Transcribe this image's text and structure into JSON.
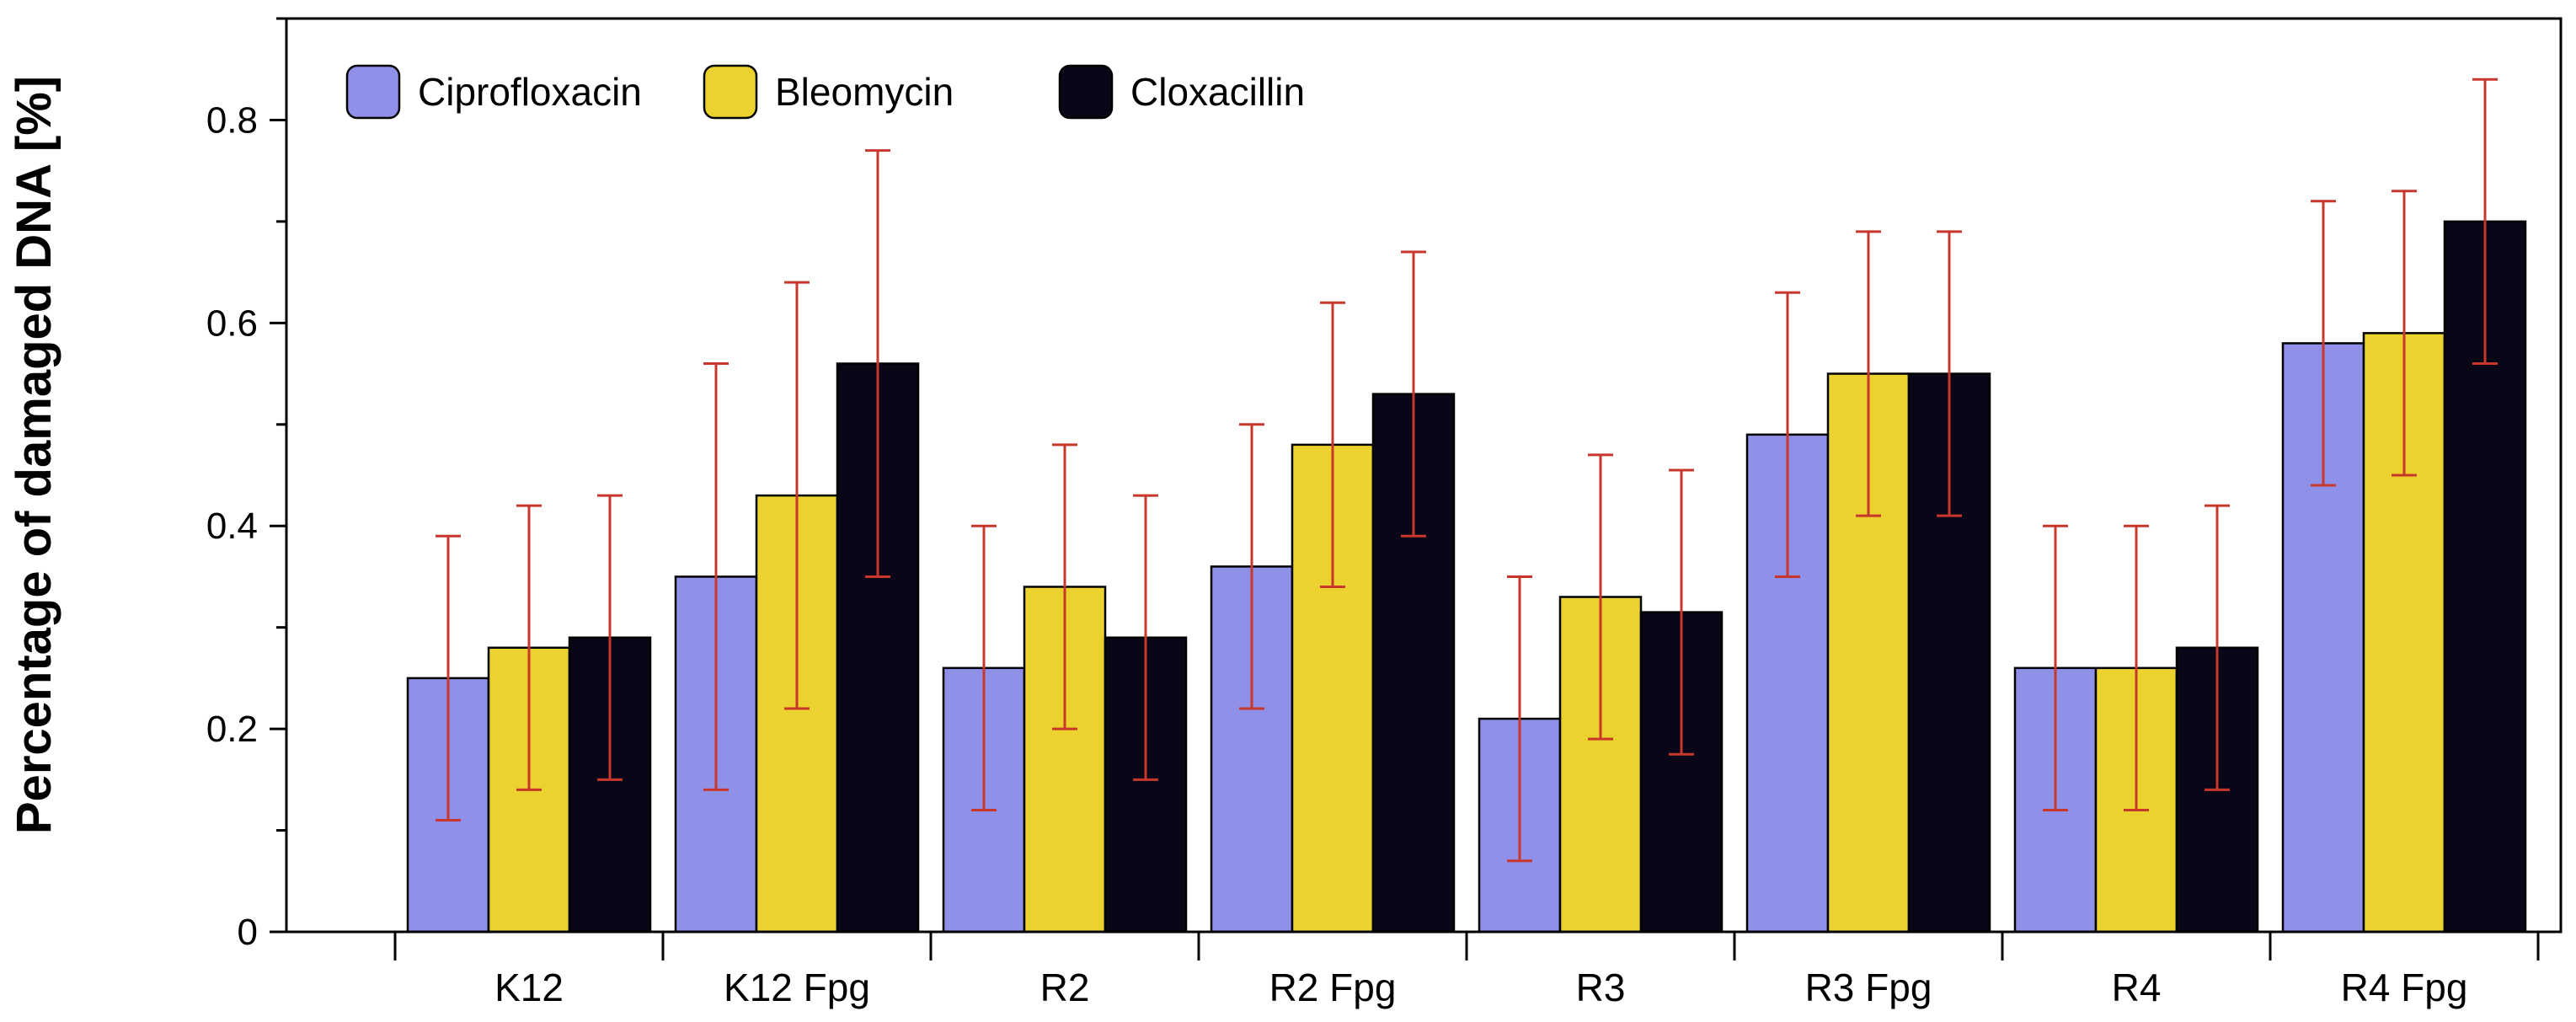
{
  "chart_data": {
    "type": "bar",
    "title": "",
    "xlabel": "",
    "ylabel": "Percentage of damaged DNA [%]",
    "ylim": [
      0,
      0.9
    ],
    "yticks": [
      0,
      0.2,
      0.4,
      0.6,
      0.8
    ],
    "ytick_labels": [
      "0",
      "0.2",
      "0.4",
      "0.6",
      "0.8"
    ],
    "grid": false,
    "legend_position": "top-left",
    "categories": [
      "K12",
      "K12 Fpg",
      "R2",
      "R2 Fpg",
      "R3",
      "R3 Fpg",
      "R4",
      "R4 Fpg"
    ],
    "series": [
      {
        "name": "Ciprofloxacin",
        "color": "#8f91e8",
        "values": [
          0.25,
          0.35,
          0.26,
          0.36,
          0.21,
          0.49,
          0.26,
          0.58
        ],
        "err_low": [
          0.11,
          0.14,
          0.12,
          0.22,
          0.07,
          0.35,
          0.12,
          0.44
        ],
        "err_high": [
          0.39,
          0.56,
          0.4,
          0.5,
          0.35,
          0.63,
          0.4,
          0.72
        ]
      },
      {
        "name": "Bleomycin",
        "color": "#ecd22f",
        "values": [
          0.28,
          0.43,
          0.34,
          0.48,
          0.33,
          0.55,
          0.26,
          0.59
        ],
        "err_low": [
          0.14,
          0.22,
          0.2,
          0.34,
          0.19,
          0.41,
          0.12,
          0.45
        ],
        "err_high": [
          0.42,
          0.64,
          0.48,
          0.62,
          0.47,
          0.69,
          0.4,
          0.73
        ]
      },
      {
        "name": "Cloxacillin",
        "color": "#080617",
        "values": [
          0.29,
          0.56,
          0.29,
          0.53,
          0.315,
          0.55,
          0.28,
          0.7
        ],
        "err_low": [
          0.15,
          0.35,
          0.15,
          0.39,
          0.175,
          0.41,
          0.14,
          0.56
        ],
        "err_high": [
          0.43,
          0.77,
          0.43,
          0.67,
          0.455,
          0.69,
          0.42,
          0.84
        ]
      }
    ],
    "error_bar_color": "#c8372b"
  }
}
